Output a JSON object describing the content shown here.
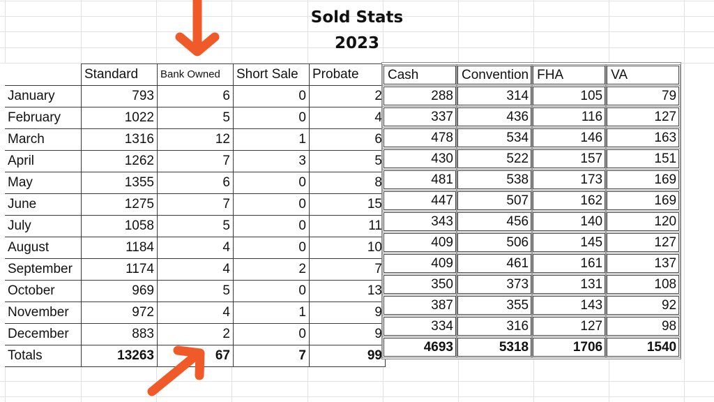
{
  "title": {
    "line1": "Sold Stats",
    "line2": "2023"
  },
  "colors": {
    "arrow": "#f05a28",
    "grid": "#e2e2e2",
    "border": "#3a3a3a"
  },
  "left_table": {
    "headers": [
      "",
      "Standard",
      "Bank Owned",
      "Short Sale",
      "Probate"
    ],
    "rows": [
      {
        "month": "January",
        "standard": "793",
        "bank_owned": "6",
        "short_sale": "0",
        "probate": "2"
      },
      {
        "month": "February",
        "standard": "1022",
        "bank_owned": "5",
        "short_sale": "0",
        "probate": "4"
      },
      {
        "month": "March",
        "standard": "1316",
        "bank_owned": "12",
        "short_sale": "1",
        "probate": "6"
      },
      {
        "month": "April",
        "standard": "1262",
        "bank_owned": "7",
        "short_sale": "3",
        "probate": "5"
      },
      {
        "month": "May",
        "standard": "1355",
        "bank_owned": "6",
        "short_sale": "0",
        "probate": "8"
      },
      {
        "month": "June",
        "standard": "1275",
        "bank_owned": "7",
        "short_sale": "0",
        "probate": "15"
      },
      {
        "month": "July",
        "standard": "1058",
        "bank_owned": "5",
        "short_sale": "0",
        "probate": "11"
      },
      {
        "month": "August",
        "standard": "1184",
        "bank_owned": "4",
        "short_sale": "0",
        "probate": "10"
      },
      {
        "month": "September",
        "standard": "1174",
        "bank_owned": "4",
        "short_sale": "2",
        "probate": "7"
      },
      {
        "month": "October",
        "standard": "969",
        "bank_owned": "5",
        "short_sale": "0",
        "probate": "13"
      },
      {
        "month": "November",
        "standard": "972",
        "bank_owned": "4",
        "short_sale": "1",
        "probate": "9"
      },
      {
        "month": "December",
        "standard": "883",
        "bank_owned": "2",
        "short_sale": "0",
        "probate": "9"
      }
    ],
    "totals": {
      "label": "Totals",
      "standard": "13263",
      "bank_owned": "67",
      "short_sale": "7",
      "probate": "99"
    }
  },
  "right_table": {
    "headers": [
      "Cash",
      "Convention",
      "FHA",
      "VA"
    ],
    "rows": [
      [
        "288",
        "314",
        "105",
        "79"
      ],
      [
        "337",
        "436",
        "116",
        "127"
      ],
      [
        "478",
        "534",
        "146",
        "163"
      ],
      [
        "430",
        "522",
        "157",
        "151"
      ],
      [
        "481",
        "538",
        "173",
        "169"
      ],
      [
        "447",
        "507",
        "162",
        "169"
      ],
      [
        "343",
        "456",
        "140",
        "120"
      ],
      [
        "409",
        "506",
        "145",
        "127"
      ],
      [
        "409",
        "461",
        "161",
        "137"
      ],
      [
        "350",
        "373",
        "131",
        "108"
      ],
      [
        "387",
        "355",
        "143",
        "92"
      ],
      [
        "334",
        "316",
        "127",
        "98"
      ]
    ],
    "totals": [
      "4693",
      "5318",
      "1706",
      "1540"
    ]
  },
  "annotations": [
    {
      "type": "arrow-down",
      "points_to": "Bank Owned header"
    },
    {
      "type": "arrow-up-right",
      "points_to": "Bank Owned total 67"
    }
  ]
}
